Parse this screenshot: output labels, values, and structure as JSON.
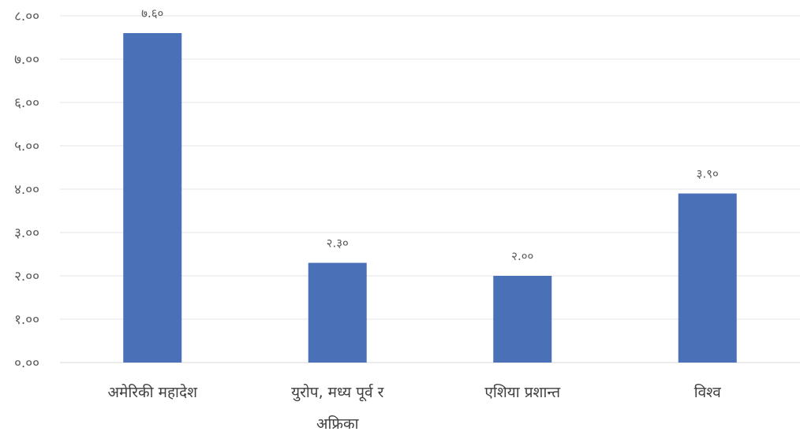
{
  "chart_data": {
    "type": "bar",
    "categories": [
      [
        "अमेरिकी महादेश"
      ],
      [
        "युरोप, मध्य पूर्व र",
        "अफ्रिका"
      ],
      [
        "एशिया प्रशान्त"
      ],
      [
        "विश्व"
      ]
    ],
    "values": [
      7.6,
      2.3,
      2.0,
      3.9
    ],
    "data_labels": [
      "७.६०",
      "२.३०",
      "२.००",
      "३.९०"
    ],
    "yticks": [
      0,
      1,
      2,
      3,
      4,
      5,
      6,
      7,
      8
    ],
    "ytick_labels": [
      "०.००",
      "१.००",
      "२.००",
      "३.००",
      "४.००",
      "५.००",
      "६.००",
      "७.००",
      "८.००"
    ],
    "ylim": [
      0,
      8
    ],
    "grid": true,
    "legend": "none",
    "colors": {
      "bar": "#4a70b8"
    }
  }
}
